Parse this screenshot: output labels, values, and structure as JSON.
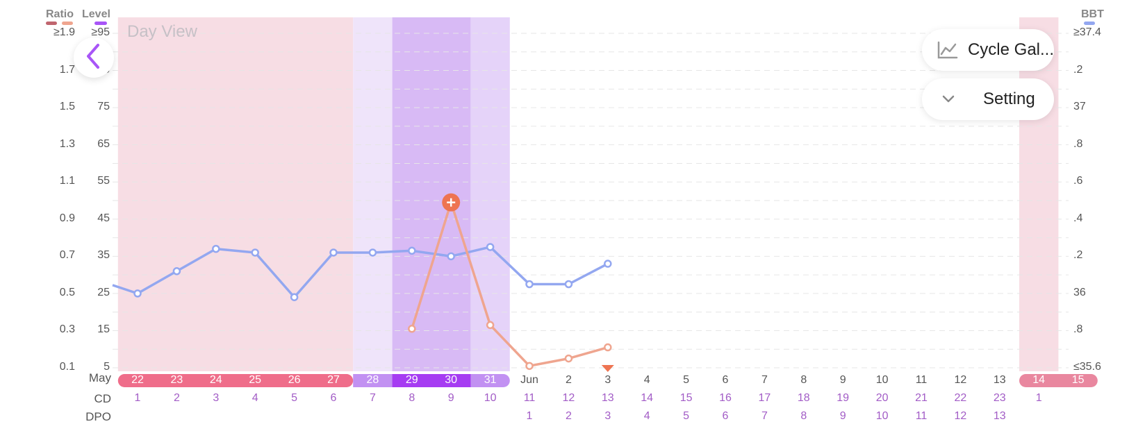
{
  "view_title": "Day View",
  "legend": {
    "ratio_label": "Ratio",
    "level_label": "Level",
    "bbt_label": "BBT",
    "ratio_colors": [
      "#c0656e",
      "#efa58f"
    ],
    "level_color": "#a855f7",
    "bbt_color": "#93a7f0"
  },
  "buttons": {
    "cycle_gallery_label": "Cycle Gal...",
    "setting_label": "Setting"
  },
  "axes": {
    "ratio_ticks": [
      "≥1.9",
      "1.7",
      "1.5",
      "1.3",
      "1.1",
      "0.9",
      "0.7",
      "0.5",
      "0.3",
      "0.1"
    ],
    "level_ticks": [
      "≥95",
      "85",
      "75",
      "65",
      "55",
      "45",
      "35",
      "25",
      "15",
      "5"
    ],
    "bbt_ticks": [
      "≥37.4",
      ".2",
      "37",
      ".8",
      ".6",
      ".4",
      ".2",
      "36",
      ".8",
      "≤35.6"
    ]
  },
  "rows": {
    "month_label": "May",
    "cd_label": "CD",
    "dpo_label": "DPO"
  },
  "dates": [
    "22",
    "23",
    "24",
    "25",
    "26",
    "27",
    "28",
    "29",
    "30",
    "31",
    "Jun",
    "2",
    "3",
    "4",
    "5",
    "6",
    "7",
    "8",
    "9",
    "10",
    "11",
    "12",
    "13",
    "14",
    "15"
  ],
  "cd": [
    "1",
    "2",
    "3",
    "4",
    "5",
    "6",
    "7",
    "8",
    "9",
    "10",
    "11",
    "12",
    "13",
    "14",
    "15",
    "16",
    "17",
    "18",
    "19",
    "20",
    "21",
    "22",
    "23",
    "1",
    ""
  ],
  "dpo": [
    "",
    "",
    "",
    "",
    "",
    "",
    "",
    "",
    "",
    "",
    "1",
    "2",
    "3",
    "4",
    "5",
    "6",
    "7",
    "8",
    "9",
    "10",
    "11",
    "12",
    "13",
    "",
    ""
  ],
  "chart_data": {
    "type": "line",
    "x_labels": [
      "22",
      "23",
      "24",
      "25",
      "26",
      "27",
      "28",
      "29",
      "30",
      "31",
      "Jun",
      "2",
      "3",
      "4",
      "5",
      "6",
      "7",
      "8",
      "9",
      "10",
      "11",
      "12",
      "13",
      "14",
      "15"
    ],
    "phase_colors": {
      "period": "#f7dde4",
      "fertile_light": "#efe4fa",
      "fertile_peak": "#d8baf5",
      "fertile_mid": "#e5d3f9",
      "band_period": "#ef6d8a",
      "band_fertile": "#c291f2",
      "band_peak": "#a63cf2",
      "band_next_period": "#e9879f"
    },
    "series": [
      {
        "name": "BBT",
        "color": "#93a7f0",
        "values": [
          36.0,
          36.12,
          36.24,
          36.22,
          35.98,
          36.22,
          36.22,
          36.23,
          36.2,
          36.25,
          36.05,
          36.05,
          36.16,
          null,
          null,
          null,
          null,
          null,
          null,
          null,
          null,
          null,
          null,
          null,
          null
        ]
      },
      {
        "name": "Ratio",
        "color": "#efa58f",
        "values": [
          null,
          null,
          null,
          null,
          null,
          null,
          null,
          0.31,
          0.99,
          0.33,
          0.11,
          0.15,
          0.21,
          null,
          null,
          null,
          null,
          null,
          null,
          null,
          null,
          null,
          null,
          null,
          null
        ]
      }
    ],
    "peak_marker_index": 8,
    "today_index": 12,
    "ranges": {
      "ratio": [
        0.1,
        1.9
      ],
      "level": [
        5,
        95
      ],
      "bbt": [
        35.6,
        37.4
      ]
    }
  }
}
